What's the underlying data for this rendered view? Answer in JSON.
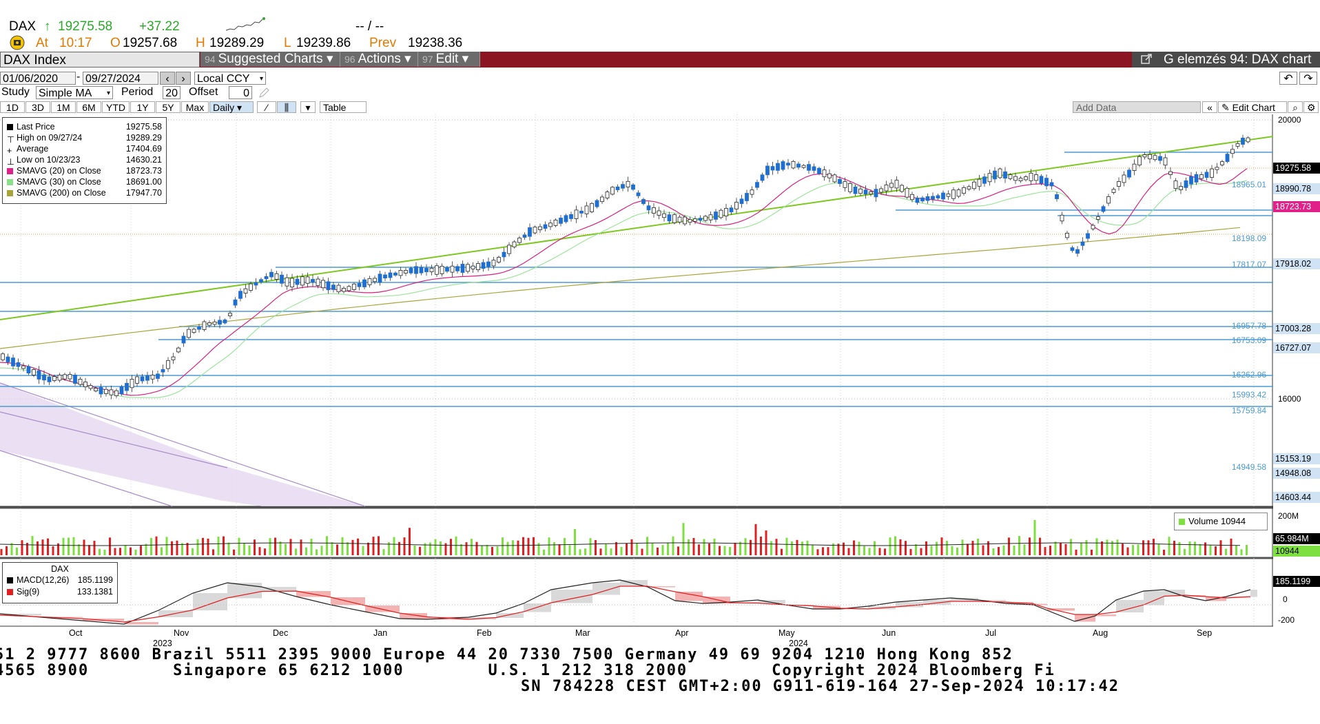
{
  "quote": {
    "symbol": "DAX",
    "arrow": "↑",
    "last": "19275.58",
    "change": "+37.22",
    "dashes": "-- / --",
    "at_label": "At",
    "time": "10:17",
    "open_label": "O",
    "open": "19257.68",
    "high_label": "H",
    "high": "19289.29",
    "low_label": "L",
    "low": "19239.86",
    "prev_label": "Prev",
    "prev": "19238.36"
  },
  "toolbar": {
    "security": "DAX Index",
    "suggested_num": "94",
    "suggested": "Suggested Charts ▾",
    "actions_num": "96",
    "actions": "Actions ▾",
    "edit_num": "97",
    "edit": "Edit ▾",
    "function_title": "G elemzés 94: DAX chart"
  },
  "controls": {
    "start_date": "01/06/2020",
    "end_date": "09/27/2024",
    "currency": "Local CCY",
    "study_label": "Study",
    "study_value": "Simple MA",
    "period_label": "Period",
    "period_value": "20",
    "offset_label": "Offset",
    "offset_value": "0",
    "ranges": [
      "1D",
      "3D",
      "1M",
      "6M",
      "YTD",
      "1Y",
      "5Y",
      "Max"
    ],
    "frequency": "Daily ▾",
    "table": "Table",
    "add_data": "Add Data",
    "edit_chart": "Edit Chart"
  },
  "legend": {
    "rows": [
      {
        "label": "Last Price",
        "value": "19275.58",
        "color": "#000000"
      },
      {
        "label": "High on 09/27/24",
        "value": "19289.29",
        "color": ""
      },
      {
        "label": "Average",
        "value": "17404.69",
        "color": ""
      },
      {
        "label": "Low on 10/23/23",
        "value": "14630.21",
        "color": ""
      },
      {
        "label": "SMAVG (20)  on Close",
        "value": "18723.73",
        "color": "#e0218a"
      },
      {
        "label": "SMAVG (30)  on Close",
        "value": "18691.00",
        "color": "#8be08b"
      },
      {
        "label": "SMAVG (200)  on Close",
        "value": "17947.70",
        "color": "#a9a43a"
      }
    ]
  },
  "price_axis": {
    "ticks": [
      "20000",
      "16000"
    ],
    "labels": [
      {
        "text": "19275.58",
        "bg": "#000000",
        "fg": "#ffffff"
      },
      {
        "text": "18990.78",
        "bg": "#cfe3f5",
        "fg": "#000000"
      },
      {
        "text": "18723.73",
        "bg": "#e0218a",
        "fg": "#ffffff"
      },
      {
        "text": "17918.02",
        "bg": "#cfe3f5",
        "fg": "#000000"
      },
      {
        "text": "17003.28",
        "bg": "#cfe3f5",
        "fg": "#000000"
      },
      {
        "text": "16727.07",
        "bg": "#cfe3f5",
        "fg": "#000000"
      },
      {
        "text": "15153.19",
        "bg": "#cfe3f5",
        "fg": "#000000"
      },
      {
        "text": "14948.08",
        "bg": "#cfe3f5",
        "fg": "#000000"
      },
      {
        "text": "14603.44",
        "bg": "#cfe3f5",
        "fg": "#000000"
      }
    ],
    "levels": [
      "18965.01",
      "18198.09",
      "17817.07",
      "16957.78",
      "16753.09",
      "16262.96",
      "15993.42",
      "15759.84",
      "14949.58"
    ]
  },
  "volume": {
    "legend": "Volume  10944",
    "ticks": [
      "200M"
    ],
    "labels": [
      {
        "text": "65.984M",
        "bg": "#000000",
        "fg": "#ffffff"
      },
      {
        "text": "10944",
        "bg": "#7ee040",
        "fg": "#000000"
      }
    ]
  },
  "macd": {
    "title": "DAX",
    "macd_label": "MACD(12,26)",
    "macd_value": "185.1199",
    "sig_label": "Sig(9)",
    "sig_value": "133.1381",
    "ticks": [
      "0",
      "-200"
    ],
    "label": "185.1199"
  },
  "time_axis": {
    "months": [
      "Oct",
      "Nov",
      "Dec",
      "Jan",
      "Feb",
      "Mar",
      "Apr",
      "May",
      "Jun",
      "Jul",
      "Aug",
      "Sep"
    ],
    "years": [
      "2023",
      "2024"
    ]
  },
  "footer": {
    "line1": "51 2 9777 8600 Brazil 5511 2395 9000 Europe 44 20 7330 7500 Germany 49 69 9204 1210 Hong Kong 852",
    "line2": "4565 8900        Singapore 65 6212 1000        U.S. 1 212 318 2000        Copyright 2024 Bloomberg Fi",
    "line3": "SN 784228 CEST GMT+2:00 G911-619-164 27-Sep-2024 10:17:42"
  }
}
